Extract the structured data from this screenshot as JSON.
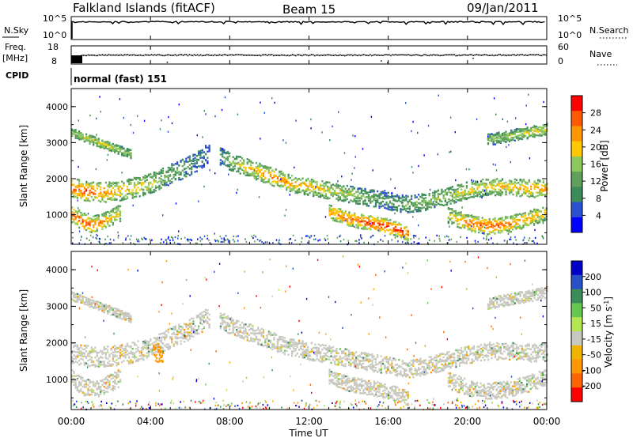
{
  "header": {
    "station": "Falkland Islands (fitACF)",
    "beam": "Beam 15",
    "date": "09/Jan/2011"
  },
  "time_axis": {
    "label": "Time UT",
    "ticks": [
      "00:00",
      "04:00",
      "08:00",
      "12:00",
      "16:00",
      "20:00",
      "00:00"
    ],
    "range_hours": [
      0,
      24
    ]
  },
  "strips": {
    "nsky_label": "N.Sky",
    "nsky_ticks": [
      "10^5",
      "10^0"
    ],
    "nsearch_label": "N.Search",
    "nsearch_ticks": [
      "10^5",
      "10^0"
    ],
    "freq_label": "Freq.",
    "freq_unit": "[MHz]",
    "freq_ticks": [
      "18",
      "8"
    ],
    "nave_label": "Nave",
    "nave_ticks": [
      "60",
      "0"
    ],
    "cpid_label": "CPID",
    "cpid_text": "normal (fast) 151"
  },
  "colors": {
    "power": [
      "#0000ff",
      "#2c50d2",
      "#3c8c5a",
      "#5fa05a",
      "#8cc85a",
      "#ffc800",
      "#ff9600",
      "#ff5a00",
      "#ff0000"
    ],
    "velocity": [
      "#ff0000",
      "#ff6400",
      "#ff9600",
      "#f0b400",
      "#c8c8c0",
      "#b4e650",
      "#64c850",
      "#3c8c5a",
      "#2850c8",
      "#0000c8"
    ]
  },
  "chart_data": [
    {
      "type": "heatmap",
      "title": "",
      "xlabel": "Time UT",
      "ylabel": "Slant Range [km]",
      "xlim": [
        0,
        24
      ],
      "ylim": [
        180,
        4500
      ],
      "yticks": [
        1000,
        2000,
        3000,
        4000
      ],
      "colorbar": {
        "label": "Power [dB]",
        "ticks": [
          "28",
          "24",
          "20",
          "16",
          "12",
          "8",
          "4"
        ],
        "range": [
          0,
          30
        ]
      },
      "bands": [
        {
          "t": [
            0,
            0.5,
            1,
            2,
            3,
            4,
            5,
            6,
            7
          ],
          "r": [
            1750,
            1700,
            1650,
            1650,
            1750,
            1900,
            2150,
            2400,
            2750
          ],
          "width": 350,
          "power": [
            26,
            27,
            26,
            22,
            20,
            18,
            12,
            10,
            6
          ]
        },
        {
          "t": [
            0,
            0.5,
            1,
            1.5,
            2,
            2.5
          ],
          "r": [
            1050,
            850,
            750,
            800,
            950,
            1100
          ],
          "width": 300,
          "power": [
            26,
            27,
            26,
            24,
            20,
            16
          ]
        },
        {
          "t": [
            7.5,
            8,
            9,
            10,
            11,
            12,
            13,
            14,
            15,
            16,
            17,
            18,
            19,
            20,
            21,
            22,
            23,
            24
          ],
          "r": [
            2650,
            2500,
            2300,
            2100,
            1900,
            1800,
            1700,
            1600,
            1500,
            1400,
            1300,
            1400,
            1550,
            1700,
            1800,
            1800,
            1750,
            1750
          ],
          "width": 300,
          "power": [
            8,
            14,
            20,
            24,
            22,
            20,
            18,
            16,
            12,
            10,
            12,
            14,
            16,
            18,
            20,
            20,
            22,
            22
          ]
        },
        {
          "t": [
            13,
            14,
            15,
            16,
            16.5,
            17
          ],
          "r": [
            1100,
            900,
            800,
            700,
            600,
            500
          ],
          "width": 250,
          "power": [
            22,
            26,
            28,
            30,
            30,
            26
          ]
        },
        {
          "t": [
            19,
            20,
            21,
            22,
            23,
            24
          ],
          "r": [
            1000,
            800,
            700,
            750,
            900,
            1100
          ],
          "width": 280,
          "power": [
            18,
            26,
            28,
            26,
            22,
            20
          ]
        },
        {
          "t": [
            0,
            1,
            2,
            3
          ],
          "r": [
            3300,
            3100,
            2900,
            2700
          ],
          "width": 150,
          "power": [
            16,
            18,
            18,
            16
          ]
        },
        {
          "t": [
            21,
            22,
            23,
            24
          ],
          "r": [
            3100,
            3200,
            3300,
            3400
          ],
          "width": 200,
          "power": [
            14,
            16,
            18,
            18
          ]
        }
      ]
    },
    {
      "type": "heatmap",
      "title": "",
      "xlabel": "Time UT",
      "ylabel": "Slant Range [km]",
      "xlim": [
        0,
        24
      ],
      "ylim": [
        180,
        4500
      ],
      "yticks": [
        1000,
        2000,
        3000,
        4000
      ],
      "colorbar": {
        "label": "Velocity [m s^-1]",
        "ticks": [
          "200",
          "100",
          "50",
          "15",
          "-15",
          "-50",
          "-100",
          "-200"
        ],
        "range": [
          -250,
          250
        ]
      },
      "note_ground_scatter": "grey (-15 to 15)"
    }
  ]
}
